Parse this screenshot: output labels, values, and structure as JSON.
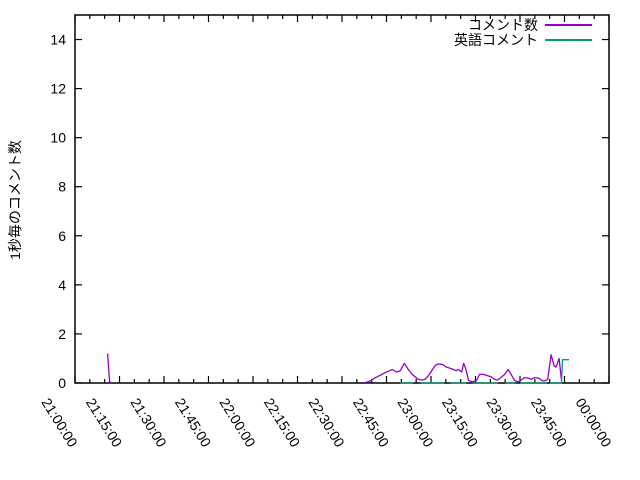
{
  "colors": {
    "background": "#ffffff",
    "axis": "#000000",
    "series1": "#9400d3",
    "series2": "#009e73"
  },
  "chart_data": {
    "type": "line",
    "title": "",
    "xlabel": "",
    "ylabel": "1秒毎のコメント数",
    "ylim": [
      0,
      15
    ],
    "xlim_minutes_from_start": [
      0,
      180
    ],
    "x_start_time": "21:00:00",
    "x_major_step_minutes": 15,
    "x_minor_step_minutes": 5,
    "grid": false,
    "legend_position": "top-right",
    "y_ticks": [
      0,
      2,
      4,
      6,
      8,
      10,
      12,
      14
    ],
    "x_ticks": [
      "21:00:00",
      "21:15:00",
      "21:30:00",
      "21:45:00",
      "22:00:00",
      "22:15:00",
      "22:30:00",
      "22:45:00",
      "23:00:00",
      "23:15:00",
      "23:30:00",
      "23:45:00",
      "00:00:00"
    ],
    "series": [
      {
        "name": "コメント数",
        "key": "comment-count",
        "color": "#9400d3",
        "segments": [
          [
            [
              "21:11:00",
              1.2
            ],
            [
              "21:11:40",
              0.05
            ],
            [
              "21:12:30",
              0
            ]
          ],
          [
            [
              "22:38:00",
              0.02
            ],
            [
              "22:39:30",
              0.08
            ],
            [
              "22:41:00",
              0.2
            ],
            [
              "22:43:00",
              0.32
            ],
            [
              "22:44:30",
              0.42
            ],
            [
              "22:46:00",
              0.5
            ],
            [
              "22:47:00",
              0.55
            ],
            [
              "22:48:20",
              0.45
            ],
            [
              "22:49:40",
              0.5
            ],
            [
              "22:51:00",
              0.8
            ],
            [
              "22:52:20",
              0.55
            ],
            [
              "22:53:40",
              0.35
            ],
            [
              "22:54:40",
              0.25
            ],
            [
              "22:55:40",
              0.15
            ],
            [
              "22:57:00",
              0.12
            ],
            [
              "22:58:00",
              0.15
            ],
            [
              "22:59:10",
              0.3
            ],
            [
              "23:00:30",
              0.55
            ],
            [
              "23:01:30",
              0.72
            ],
            [
              "23:02:30",
              0.78
            ],
            [
              "23:04:00",
              0.75
            ],
            [
              "23:05:10",
              0.65
            ],
            [
              "23:06:30",
              0.6
            ],
            [
              "23:07:30",
              0.55
            ],
            [
              "23:08:30",
              0.5
            ],
            [
              "23:09:10",
              0.55
            ],
            [
              "23:10:20",
              0.45
            ],
            [
              "23:11:00",
              0.8
            ],
            [
              "23:11:40",
              0.6
            ],
            [
              "23:12:40",
              0.1
            ],
            [
              "23:14:00",
              0.05
            ],
            [
              "23:15:20",
              0.1
            ],
            [
              "23:16:20",
              0.35
            ],
            [
              "23:17:40",
              0.35
            ],
            [
              "23:19:00",
              0.3
            ],
            [
              "23:20:20",
              0.25
            ],
            [
              "23:21:20",
              0.15
            ],
            [
              "23:22:20",
              0.12
            ],
            [
              "23:23:20",
              0.2
            ],
            [
              "23:24:50",
              0.35
            ],
            [
              "23:26:00",
              0.55
            ],
            [
              "23:27:00",
              0.35
            ],
            [
              "23:28:10",
              0.1
            ],
            [
              "23:29:10",
              0.05
            ],
            [
              "23:30:10",
              0.1
            ],
            [
              "23:31:30",
              0.22
            ],
            [
              "23:32:50",
              0.2
            ],
            [
              "23:33:50",
              0.15
            ],
            [
              "23:34:50",
              0.22
            ],
            [
              "23:36:20",
              0.2
            ],
            [
              "23:37:20",
              0.1
            ],
            [
              "23:38:20",
              0.08
            ],
            [
              "23:39:20",
              0.15
            ],
            [
              "23:40:30",
              1.15
            ],
            [
              "23:41:30",
              0.7
            ],
            [
              "23:42:10",
              0.65
            ],
            [
              "23:43:10",
              1.0
            ],
            [
              "23:44:00",
              0.1
            ]
          ]
        ]
      },
      {
        "name": "英語コメント",
        "key": "english-comment",
        "color": "#009e73",
        "segments": [
          [
            [
              "22:49:40",
              0
            ],
            [
              "22:54:00",
              0
            ]
          ],
          [
            [
              "22:56:30",
              0
            ],
            [
              "23:04:30",
              0
            ]
          ],
          [
            [
              "23:06:30",
              0
            ],
            [
              "23:12:00",
              0
            ]
          ],
          [
            [
              "23:14:00",
              0
            ],
            [
              "23:22:30",
              0
            ]
          ],
          [
            [
              "23:25:00",
              0
            ],
            [
              "23:28:30",
              0
            ]
          ],
          [
            [
              "23:30:00",
              0
            ],
            [
              "23:39:00",
              0
            ]
          ],
          [
            [
              "23:40:00",
              0
            ],
            [
              "23:44:00",
              0
            ],
            [
              "23:44:20",
              0.95
            ],
            [
              "23:46:30",
              0.95
            ]
          ]
        ]
      }
    ]
  }
}
